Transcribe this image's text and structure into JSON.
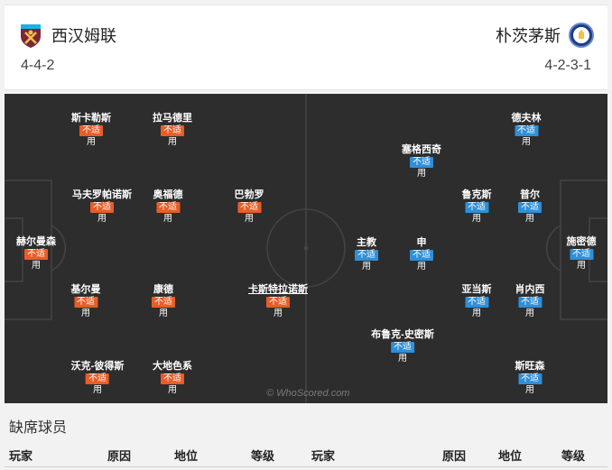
{
  "home_team": {
    "name": "西汉姆联",
    "formation": "4-4-2",
    "crest_icon": "west-ham-crest-icon",
    "color": "#7a263a"
  },
  "away_team": {
    "name": "朴茨茅斯",
    "formation": "4-2-3-1",
    "crest_icon": "portsmouth-crest-icon",
    "color": "#1a3c8c"
  },
  "status_label": "不适",
  "status_suffix": "用",
  "home_players": [
    {
      "name": "赫尔曼森"
    },
    {
      "name": "斯卡勒斯"
    },
    {
      "name": "马夫罗帕诺斯"
    },
    {
      "name": "基尔曼"
    },
    {
      "name": "沃克-彼得斯"
    },
    {
      "name": "拉马德里"
    },
    {
      "name": "奥福德"
    },
    {
      "name": "康德"
    },
    {
      "name": "大地色系"
    },
    {
      "name": "巴勃罗"
    },
    {
      "name": "卡斯特拉诺斯"
    }
  ],
  "away_players": [
    {
      "name": "施密德"
    },
    {
      "name": "德夫林"
    },
    {
      "name": "普尔"
    },
    {
      "name": "肖内西"
    },
    {
      "name": "斯旺森"
    },
    {
      "name": "鲁克斯"
    },
    {
      "name": "亚当斯"
    },
    {
      "name": "塞格西奇"
    },
    {
      "name": "申"
    },
    {
      "name": "布鲁克-史密斯"
    },
    {
      "name": "主教"
    }
  ],
  "watermark": "© WhoScored.com",
  "missing": {
    "title": "缺席球员",
    "columns_home": [
      "玩家",
      "原因",
      "地位",
      "等级"
    ],
    "columns_away": [
      "玩家",
      "原因",
      "地位",
      "等级"
    ]
  },
  "colors": {
    "pitch": "#2d2d2d",
    "home_badge": "#e85d26",
    "away_badge": "#2f8fd8"
  }
}
